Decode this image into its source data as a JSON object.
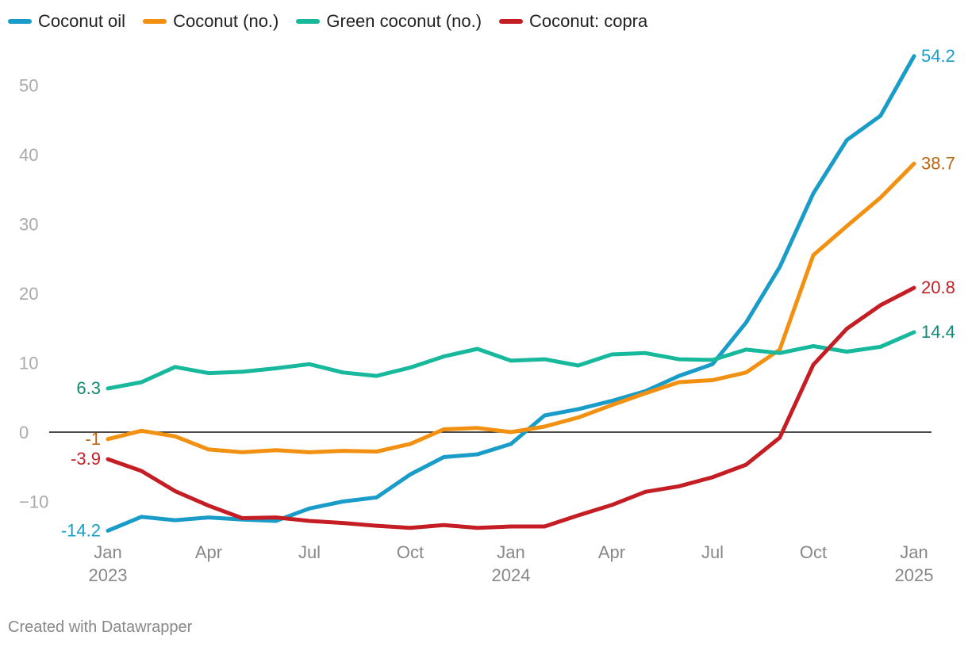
{
  "chart_data": {
    "type": "line",
    "title": "",
    "xlabel": "",
    "ylabel": "",
    "ylim": [
      -15,
      55
    ],
    "yticks": [
      50,
      40,
      30,
      20,
      10,
      0,
      -10
    ],
    "ytick_labels": [
      "50",
      "40",
      "30",
      "20",
      "10",
      "0",
      "−10"
    ],
    "x_start": "Jan 2023",
    "x_count": 25,
    "xticks": [
      {
        "index": 0,
        "month": "Jan",
        "year": "2023"
      },
      {
        "index": 3,
        "month": "Apr",
        "year": ""
      },
      {
        "index": 6,
        "month": "Jul",
        "year": ""
      },
      {
        "index": 9,
        "month": "Oct",
        "year": ""
      },
      {
        "index": 12,
        "month": "Jan",
        "year": "2024"
      },
      {
        "index": 15,
        "month": "Apr",
        "year": ""
      },
      {
        "index": 18,
        "month": "Jul",
        "year": ""
      },
      {
        "index": 21,
        "month": "Oct",
        "year": ""
      },
      {
        "index": 24,
        "month": "Jan",
        "year": "2025"
      }
    ],
    "series": [
      {
        "name": "Coconut oil",
        "color": "#1a9cc9",
        "label_color": "#1a9cc9",
        "start_label": "-14.2",
        "end_label": "54.2",
        "values": [
          -14.2,
          -12.2,
          -12.7,
          -12.3,
          -12.6,
          -12.8,
          -11.0,
          -10.0,
          -9.4,
          -6.1,
          -3.6,
          -3.2,
          -1.7,
          2.4,
          3.3,
          4.5,
          5.9,
          8.1,
          9.8,
          15.8,
          23.8,
          34.4,
          42.1,
          45.6,
          54.2
        ]
      },
      {
        "name": "Coconut (no.)",
        "color": "#f29111",
        "label_color": "#c0640d",
        "start_label": "-1",
        "end_label": "38.7",
        "values": [
          -1.0,
          0.2,
          -0.6,
          -2.5,
          -2.9,
          -2.6,
          -2.9,
          -2.7,
          -2.8,
          -1.7,
          0.4,
          0.6,
          0.0,
          0.8,
          2.1,
          3.9,
          5.6,
          7.2,
          7.5,
          8.6,
          11.9,
          25.5,
          29.7,
          33.8,
          38.7
        ]
      },
      {
        "name": "Green coconut (no.)",
        "color": "#18b89d",
        "label_color": "#0f8a73",
        "start_label": "6.3",
        "end_label": "14.4",
        "values": [
          6.3,
          7.2,
          9.4,
          8.5,
          8.7,
          9.2,
          9.8,
          8.6,
          8.1,
          9.3,
          10.9,
          12.0,
          10.3,
          10.5,
          9.6,
          11.2,
          11.4,
          10.5,
          10.4,
          11.9,
          11.4,
          12.4,
          11.6,
          12.3,
          14.4
        ]
      },
      {
        "name": "Coconut: copra",
        "color": "#c41e24",
        "label_color": "#c41e24",
        "start_label": "-3.9",
        "end_label": "20.8",
        "values": [
          -3.9,
          -5.6,
          -8.5,
          -10.6,
          -12.4,
          -12.3,
          -12.8,
          -13.1,
          -13.5,
          -13.8,
          -13.4,
          -13.8,
          -13.6,
          -13.6,
          -12.0,
          -10.5,
          -8.6,
          -7.8,
          -6.5,
          -4.7,
          -0.8,
          9.7,
          14.9,
          18.3,
          20.8
        ]
      }
    ]
  },
  "footer": {
    "credit": "Created with Datawrapper"
  }
}
